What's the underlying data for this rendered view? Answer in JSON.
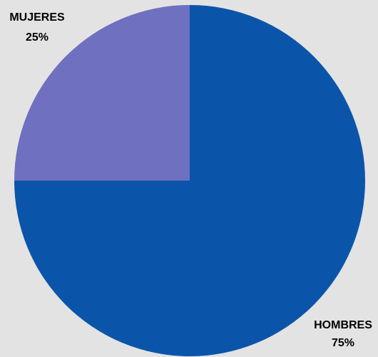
{
  "chart_data": {
    "type": "pie",
    "categories": [
      "HOMBRES",
      "MUJERES"
    ],
    "values": [
      75,
      25
    ],
    "value_labels": [
      "75%",
      "25%"
    ],
    "colors": [
      "#0a55aa",
      "#6f70c0"
    ],
    "start": "12 o'clock",
    "direction": "clockwise"
  },
  "colors": {
    "background": "#e3e3e3"
  }
}
